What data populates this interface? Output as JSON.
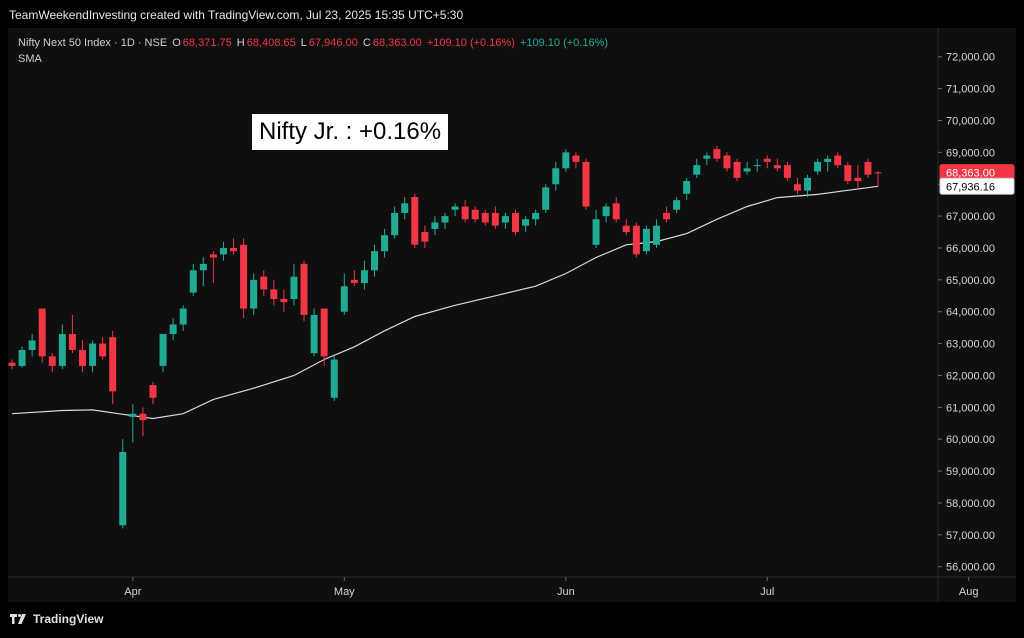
{
  "header": {
    "caption": "TeamWeekendInvesting created with TradingView.com, Jul 23, 2025 15:35 UTC+5:30"
  },
  "legend": {
    "symbol": "Nifty Next 50 Index · 1D · NSE",
    "open_label": "O",
    "open": "68,371.75",
    "high_label": "H",
    "high": "68,408.65",
    "low_label": "L",
    "low": "67,946.00",
    "close_label": "C",
    "close": "68,363.00",
    "change": "+109.10 (+0.16%)",
    "change2": "+109.10 (+0.16%)",
    "indicator": "SMA"
  },
  "annotation": "Nifty Jr. : +0.16%",
  "footer": {
    "brand": "TradingView"
  },
  "colors": {
    "up": "#22ab94",
    "down": "#f23645",
    "sma": "#d9d9d9",
    "bg": "#0f0f0f"
  },
  "chart_data": {
    "type": "candlestick",
    "x_labels": [
      "Apr",
      "May",
      "Jun",
      "Jul",
      "Aug"
    ],
    "y_ticks": [
      56000,
      57000,
      58000,
      59000,
      60000,
      61000,
      62000,
      63000,
      64000,
      65000,
      66000,
      67000,
      68000,
      69000,
      70000,
      71000,
      72000
    ],
    "y_tick_labels": [
      "56,000.00",
      "57,000.00",
      "58,000.00",
      "59,000.00",
      "60,000.00",
      "61,000.00",
      "62,000.00",
      "63,000.00",
      "64,000.00",
      "65,000.00",
      "66,000.00",
      "67,000.00",
      "68,000.00",
      "69,000.00",
      "70,000.00",
      "71,000.00",
      "72,000.00"
    ],
    "ylim": [
      55300,
      72400
    ],
    "month_start_index": [
      12,
      33,
      55,
      75,
      95
    ],
    "candles": [
      {
        "o": 62400,
        "h": 62500,
        "l": 62200,
        "c": 62300
      },
      {
        "o": 62300,
        "h": 62900,
        "l": 62250,
        "c": 62800
      },
      {
        "o": 62800,
        "h": 63300,
        "l": 62600,
        "c": 63100
      },
      {
        "o": 64100,
        "h": 64100,
        "l": 62400,
        "c": 62600
      },
      {
        "o": 62600,
        "h": 62700,
        "l": 62100,
        "c": 62300
      },
      {
        "o": 62300,
        "h": 63600,
        "l": 62200,
        "c": 63300
      },
      {
        "o": 63300,
        "h": 63900,
        "l": 62700,
        "c": 62800
      },
      {
        "o": 62800,
        "h": 63100,
        "l": 62100,
        "c": 62300
      },
      {
        "o": 62300,
        "h": 63100,
        "l": 62100,
        "c": 63000
      },
      {
        "o": 63000,
        "h": 63200,
        "l": 62500,
        "c": 62600
      },
      {
        "o": 63200,
        "h": 63400,
        "l": 61100,
        "c": 61500
      },
      {
        "o": 57300,
        "h": 60000,
        "l": 57200,
        "c": 59600
      },
      {
        "o": 60700,
        "h": 61100,
        "l": 59900,
        "c": 60800
      },
      {
        "o": 60800,
        "h": 61000,
        "l": 60100,
        "c": 60600
      },
      {
        "o": 61700,
        "h": 61800,
        "l": 61100,
        "c": 61300
      },
      {
        "o": 62300,
        "h": 63300,
        "l": 62100,
        "c": 63300
      },
      {
        "o": 63300,
        "h": 63800,
        "l": 63100,
        "c": 63600
      },
      {
        "o": 63600,
        "h": 64200,
        "l": 63400,
        "c": 64100
      },
      {
        "o": 64600,
        "h": 65500,
        "l": 64500,
        "c": 65300
      },
      {
        "o": 65300,
        "h": 65700,
        "l": 64800,
        "c": 65500
      },
      {
        "o": 65800,
        "h": 65900,
        "l": 64900,
        "c": 65700
      },
      {
        "o": 65800,
        "h": 66200,
        "l": 65600,
        "c": 66000
      },
      {
        "o": 66000,
        "h": 66300,
        "l": 65800,
        "c": 65900
      },
      {
        "o": 66100,
        "h": 66300,
        "l": 63800,
        "c": 64100
      },
      {
        "o": 64100,
        "h": 65200,
        "l": 63900,
        "c": 65000
      },
      {
        "o": 65100,
        "h": 65300,
        "l": 64500,
        "c": 64700
      },
      {
        "o": 64700,
        "h": 65000,
        "l": 64200,
        "c": 64400
      },
      {
        "o": 64400,
        "h": 64700,
        "l": 64000,
        "c": 64300
      },
      {
        "o": 64400,
        "h": 65500,
        "l": 64200,
        "c": 65100
      },
      {
        "o": 65500,
        "h": 65600,
        "l": 63700,
        "c": 63900
      },
      {
        "o": 62700,
        "h": 64100,
        "l": 62600,
        "c": 63900
      },
      {
        "o": 64100,
        "h": 64100,
        "l": 62300,
        "c": 62600
      },
      {
        "o": 61300,
        "h": 62600,
        "l": 61200,
        "c": 62500
      },
      {
        "o": 64000,
        "h": 65200,
        "l": 63900,
        "c": 64800
      },
      {
        "o": 65000,
        "h": 65300,
        "l": 64800,
        "c": 64900
      },
      {
        "o": 64900,
        "h": 65600,
        "l": 64700,
        "c": 65300
      },
      {
        "o": 65300,
        "h": 66100,
        "l": 65100,
        "c": 65900
      },
      {
        "o": 65900,
        "h": 66600,
        "l": 65700,
        "c": 66400
      },
      {
        "o": 66400,
        "h": 67300,
        "l": 66300,
        "c": 67100
      },
      {
        "o": 67100,
        "h": 67600,
        "l": 66900,
        "c": 67400
      },
      {
        "o": 67600,
        "h": 67700,
        "l": 66000,
        "c": 66100
      },
      {
        "o": 66500,
        "h": 66700,
        "l": 66000,
        "c": 66200
      },
      {
        "o": 66600,
        "h": 67000,
        "l": 66400,
        "c": 66800
      },
      {
        "o": 66800,
        "h": 67100,
        "l": 66600,
        "c": 67000
      },
      {
        "o": 67200,
        "h": 67400,
        "l": 67000,
        "c": 67300
      },
      {
        "o": 67300,
        "h": 67500,
        "l": 66800,
        "c": 66900
      },
      {
        "o": 67200,
        "h": 67300,
        "l": 66800,
        "c": 66900
      },
      {
        "o": 67100,
        "h": 67200,
        "l": 66700,
        "c": 66800
      },
      {
        "o": 67100,
        "h": 67300,
        "l": 66600,
        "c": 66700
      },
      {
        "o": 66800,
        "h": 67100,
        "l": 66600,
        "c": 67000
      },
      {
        "o": 67100,
        "h": 67200,
        "l": 66400,
        "c": 66500
      },
      {
        "o": 66700,
        "h": 67000,
        "l": 66500,
        "c": 66900
      },
      {
        "o": 66900,
        "h": 67200,
        "l": 66700,
        "c": 67100
      },
      {
        "o": 67200,
        "h": 68000,
        "l": 67100,
        "c": 67900
      },
      {
        "o": 68000,
        "h": 68700,
        "l": 67800,
        "c": 68500
      },
      {
        "o": 68500,
        "h": 69100,
        "l": 68400,
        "c": 69000
      },
      {
        "o": 68900,
        "h": 69000,
        "l": 68500,
        "c": 68700
      },
      {
        "o": 68700,
        "h": 68800,
        "l": 67200,
        "c": 67300
      },
      {
        "o": 66100,
        "h": 67200,
        "l": 66000,
        "c": 66900
      },
      {
        "o": 67000,
        "h": 67400,
        "l": 66800,
        "c": 67300
      },
      {
        "o": 67400,
        "h": 67600,
        "l": 66800,
        "c": 66900
      },
      {
        "o": 66700,
        "h": 66900,
        "l": 66400,
        "c": 66500
      },
      {
        "o": 66700,
        "h": 66800,
        "l": 65700,
        "c": 65800
      },
      {
        "o": 65900,
        "h": 66700,
        "l": 65800,
        "c": 66600
      },
      {
        "o": 66100,
        "h": 66900,
        "l": 66000,
        "c": 66700
      },
      {
        "o": 67100,
        "h": 67300,
        "l": 66800,
        "c": 66900
      },
      {
        "o": 67200,
        "h": 67600,
        "l": 67100,
        "c": 67500
      },
      {
        "o": 67700,
        "h": 68200,
        "l": 67500,
        "c": 68100
      },
      {
        "o": 68300,
        "h": 68800,
        "l": 68200,
        "c": 68600
      },
      {
        "o": 68800,
        "h": 69000,
        "l": 68600,
        "c": 68900
      },
      {
        "o": 69100,
        "h": 69200,
        "l": 68700,
        "c": 68800
      },
      {
        "o": 68900,
        "h": 69000,
        "l": 68400,
        "c": 68500
      },
      {
        "o": 68700,
        "h": 68800,
        "l": 68100,
        "c": 68200
      },
      {
        "o": 68400,
        "h": 68700,
        "l": 68300,
        "c": 68500
      },
      {
        "o": 68600,
        "h": 68800,
        "l": 68400,
        "c": 68600
      },
      {
        "o": 68800,
        "h": 68900,
        "l": 68500,
        "c": 68700
      },
      {
        "o": 68600,
        "h": 68800,
        "l": 68400,
        "c": 68500
      },
      {
        "o": 68600,
        "h": 68700,
        "l": 68100,
        "c": 68200
      },
      {
        "o": 68000,
        "h": 68200,
        "l": 67700,
        "c": 67800
      },
      {
        "o": 67800,
        "h": 68300,
        "l": 67600,
        "c": 68200
      },
      {
        "o": 68400,
        "h": 68800,
        "l": 68300,
        "c": 68700
      },
      {
        "o": 68700,
        "h": 68900,
        "l": 68400,
        "c": 68800
      },
      {
        "o": 68900,
        "h": 69000,
        "l": 68500,
        "c": 68600
      },
      {
        "o": 68600,
        "h": 68700,
        "l": 68000,
        "c": 68100
      },
      {
        "o": 68200,
        "h": 68600,
        "l": 67900,
        "c": 68100
      },
      {
        "o": 68700,
        "h": 68800,
        "l": 68200,
        "c": 68300
      },
      {
        "o": 68372,
        "h": 68409,
        "l": 67946,
        "c": 68363
      }
    ],
    "sma": [
      {
        "i": 0,
        "v": 60800
      },
      {
        "i": 5,
        "v": 60900
      },
      {
        "i": 8,
        "v": 60920
      },
      {
        "i": 11,
        "v": 60780
      },
      {
        "i": 14,
        "v": 60650
      },
      {
        "i": 17,
        "v": 60800
      },
      {
        "i": 20,
        "v": 61250
      },
      {
        "i": 24,
        "v": 61600
      },
      {
        "i": 28,
        "v": 62000
      },
      {
        "i": 31,
        "v": 62500
      },
      {
        "i": 34,
        "v": 62900
      },
      {
        "i": 37,
        "v": 63400
      },
      {
        "i": 40,
        "v": 63850
      },
      {
        "i": 44,
        "v": 64200
      },
      {
        "i": 48,
        "v": 64500
      },
      {
        "i": 52,
        "v": 64800
      },
      {
        "i": 55,
        "v": 65200
      },
      {
        "i": 58,
        "v": 65700
      },
      {
        "i": 61,
        "v": 66100
      },
      {
        "i": 64,
        "v": 66200
      },
      {
        "i": 67,
        "v": 66450
      },
      {
        "i": 70,
        "v": 66900
      },
      {
        "i": 73,
        "v": 67300
      },
      {
        "i": 76,
        "v": 67580
      },
      {
        "i": 80,
        "v": 67680
      },
      {
        "i": 83,
        "v": 67810
      },
      {
        "i": 86,
        "v": 67936
      }
    ],
    "last_price_label": "68,363.00",
    "last_price": 68363,
    "sma_label": "67,936.16",
    "sma_value": 67936.16
  }
}
